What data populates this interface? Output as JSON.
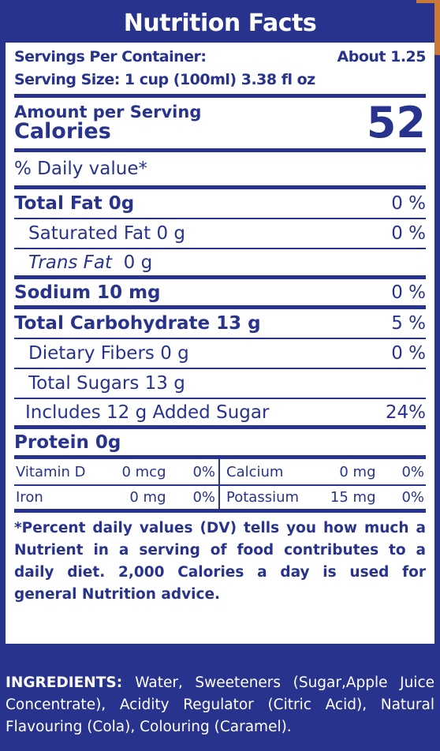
{
  "title": "Nutrition Facts",
  "servings_per_container_label": "Servings Per Container:",
  "servings_per_container_value": "About 1.25",
  "serving_size": "Serving Size: 1 cup (100ml) 3.38 fl oz",
  "amount_per_serving": "Amount per Serving",
  "calories_label": "Calories",
  "calories_value": "52",
  "daily_value_header": "% Daily value*",
  "nutrients": [
    {
      "label": "Total Fat  0g",
      "pct": "0 %"
    },
    {
      "label": "Saturated Fat  0 g",
      "pct": "0 %"
    },
    {
      "label_italic": "Trans Fat",
      "label": "0 g",
      "pct": ""
    },
    {
      "label": "Sodium  10 mg",
      "pct": "0 %"
    },
    {
      "label": "Total Carbohydrate 13 g",
      "pct": "5 %"
    },
    {
      "label": "Dietary Fibers  0 g",
      "pct": "0 %"
    },
    {
      "label": "Total Sugars  13 g",
      "pct": ""
    },
    {
      "label": "Includes 12 g Added Sugar",
      "pct": "24%"
    },
    {
      "label": "Protein  0g",
      "pct": ""
    }
  ],
  "vitamins": [
    {
      "name": "Vitamin D",
      "qty": "0 mcg",
      "pct": "0%"
    },
    {
      "name": "Calcium",
      "qty": "0 mg",
      "pct": "0%"
    },
    {
      "name": "Iron",
      "qty": "0 mg",
      "pct": "0%"
    },
    {
      "name": "Potassium",
      "qty": "15 mg",
      "pct": "0%"
    }
  ],
  "footnote": "*Percent daily values (DV) tells you how much a Nutrient in a serving of food contributes to a daily diet. 2,000 Calories a day is used for general Nutrition advice.",
  "ingredients_label": "INGREDIENTS:",
  "ingredients_text": "Water, Sweeteners (Sugar,Apple Juice Concentrate), Acidity Regulator (Citric Acid), Natural Flavouring (Cola), Colouring (Caramel).",
  "colors": {
    "brand_blue": "#27338c",
    "panel_bg": "#ffffff"
  }
}
